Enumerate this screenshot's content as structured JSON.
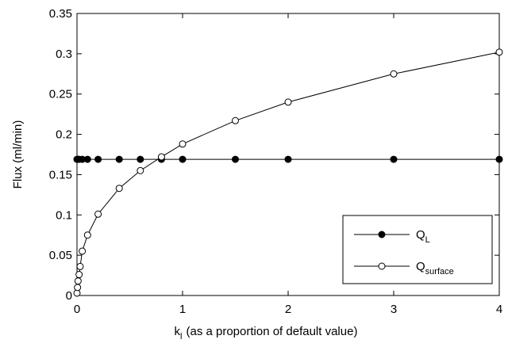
{
  "chart_data": {
    "type": "line",
    "x_label": {
      "text": "k",
      "subscript": "l",
      "rest": "(as a proportion of default value)"
    },
    "y_label": "Flux (ml/min)",
    "xlim": [
      0,
      4
    ],
    "xticks": [
      0,
      1,
      2,
      3,
      4
    ],
    "ylim": [
      0,
      0.35
    ],
    "yticks": [
      0,
      0.05,
      0.1,
      0.15,
      0.2,
      0.25,
      0.3,
      0.35
    ],
    "legend": "lower right",
    "series": [
      {
        "name": "Q",
        "subscript": "L",
        "color": "#000000",
        "marker": "filled",
        "x": [
          0,
          0.01,
          0.02,
          0.05,
          0.1,
          0.2,
          0.4,
          0.6,
          0.8,
          1,
          1.5,
          2,
          3,
          4
        ],
        "values": [
          0.169,
          0.169,
          0.169,
          0.169,
          0.169,
          0.169,
          0.169,
          0.169,
          0.169,
          0.169,
          0.169,
          0.169,
          0.169,
          0.169
        ]
      },
      {
        "name": "Q",
        "subscript": "surface",
        "color": "#000000",
        "marker": "open",
        "x": [
          0,
          0.005,
          0.01,
          0.02,
          0.03,
          0.05,
          0.1,
          0.2,
          0.4,
          0.6,
          0.8,
          1,
          1.5,
          2,
          3,
          4
        ],
        "values": [
          0.003,
          0.01,
          0.018,
          0.026,
          0.036,
          0.055,
          0.075,
          0.101,
          0.133,
          0.155,
          0.172,
          0.188,
          0.217,
          0.24,
          0.275,
          0.302
        ]
      }
    ]
  }
}
